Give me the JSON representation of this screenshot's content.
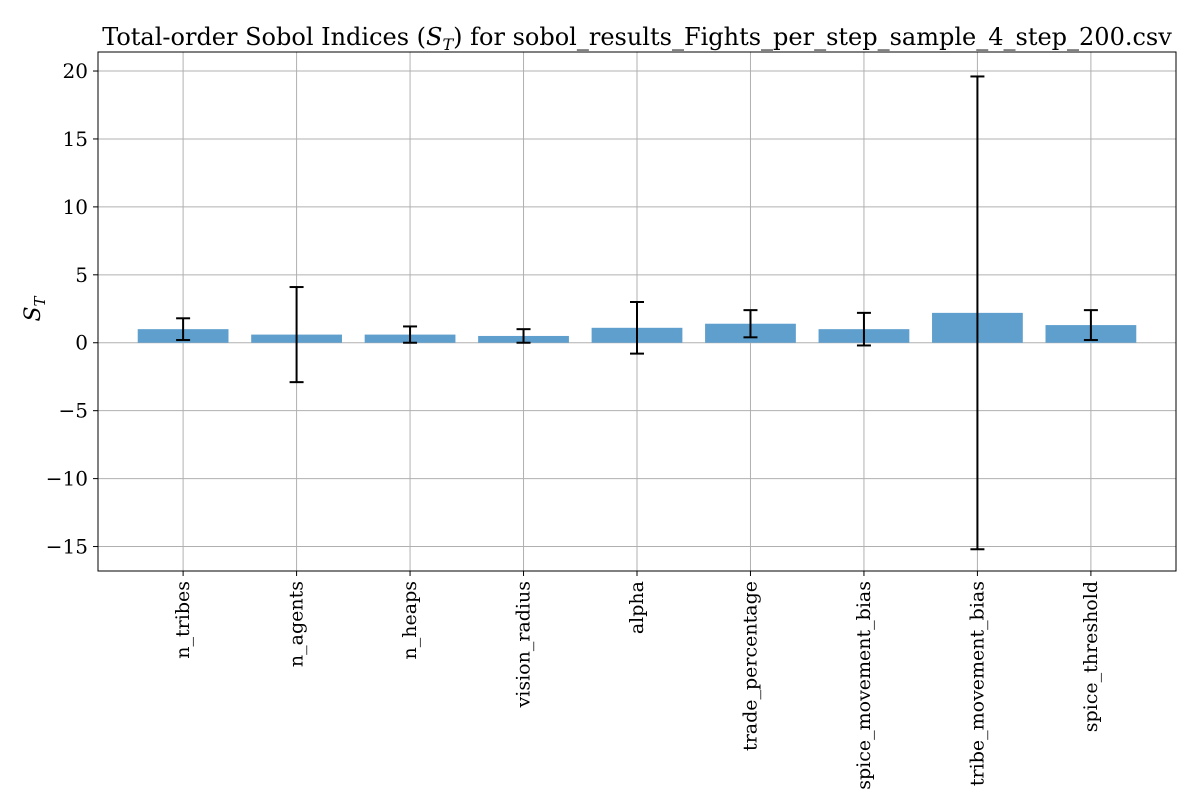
{
  "chart_data": {
    "type": "bar",
    "title": "Total-order Sobol Indices (S_T) for sobol_results_Fights_per_step_sample_4_step_200.csv",
    "title_parts": {
      "pre": "Total-order Sobol Indices (",
      "symbol": "S",
      "subscript": "T",
      "post": ") for sobol_results_Fights_per_step_sample_4_step_200.csv"
    },
    "xlabel": "",
    "ylabel": "S_T",
    "ylabel_parts": {
      "symbol": "S",
      "subscript": "T"
    },
    "categories": [
      "n_tribes",
      "n_agents",
      "n_heaps",
      "vision_radius",
      "alpha",
      "trade_percentage",
      "spice_movement_bias",
      "tribe_movement_bias",
      "spice_threshold"
    ],
    "series": [
      {
        "values": [
          1.0,
          0.6,
          0.6,
          0.5,
          1.1,
          1.4,
          1.0,
          2.2,
          1.3
        ],
        "errors": [
          0.8,
          3.5,
          0.6,
          0.5,
          1.9,
          1.0,
          1.2,
          17.4,
          1.1
        ]
      }
    ],
    "ylim": [
      -16.8,
      21.4
    ],
    "yticks": [
      -15,
      -10,
      -5,
      0,
      5,
      10,
      15,
      20
    ],
    "ytick_labels": [
      "−15",
      "−10",
      "−5",
      "0",
      "5",
      "10",
      "15",
      "20"
    ],
    "grid": true,
    "legend": "none",
    "colors": {
      "bar": "#5f9fcd",
      "error": "#000000",
      "grid": "#b0b0b0"
    }
  }
}
